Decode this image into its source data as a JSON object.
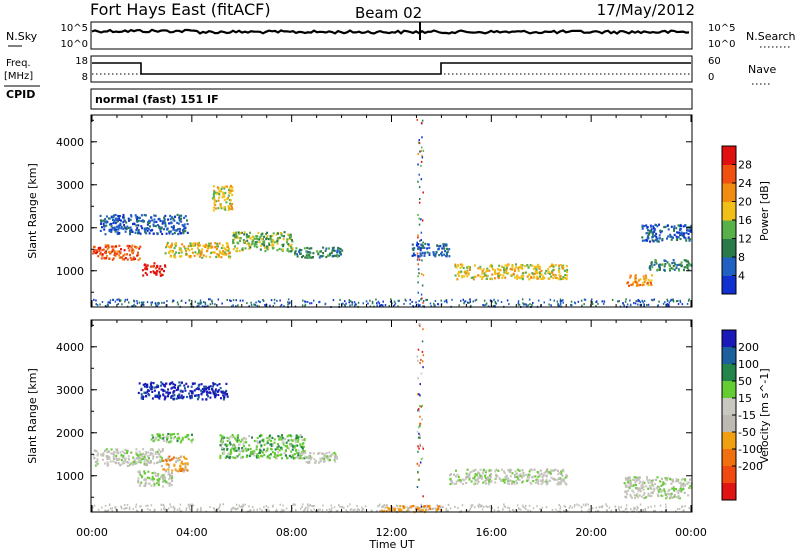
{
  "header": {
    "station": "Fort Hays East (fitACF)",
    "beam": "Beam 02",
    "date": "17/May/2012"
  },
  "top_panels": {
    "nsky_label": "N.Sky",
    "nsky_ticks": [
      "10^5",
      "10^0"
    ],
    "nsearch_label": "N.Search",
    "nsearch_ticks": [
      "10^5",
      "10^0"
    ],
    "freq_label_1": "Freq.",
    "freq_label_2": "[MHz]",
    "freq_ticks": [
      "18",
      "8"
    ],
    "nave_label": "Nave",
    "nave_ticks": [
      "60",
      "0"
    ],
    "cpid_label": "CPID",
    "cpid_text": "normal (fast) 151 IF"
  },
  "colors": {
    "power": [
      "#1030d0",
      "#2060c0",
      "#2a7a4a",
      "#58b048",
      "#f0c018",
      "#f08c10",
      "#f05010",
      "#e01010"
    ],
    "velocity": [
      "#1a1ab8",
      "#1b5f9c",
      "#24854a",
      "#66cc33",
      "#c8c8c0",
      "#bdb9b3",
      "#f0a010",
      "#f07010",
      "#f04a10",
      "#e01414"
    ],
    "nsky_line": "#000000",
    "ground_scatter": "#c0c0b8"
  },
  "chart_data": [
    {
      "type": "heatmap",
      "panel": "power",
      "xlabel": "",
      "ylabel": "Slant Range [km]",
      "x_ticks": [
        "00:00",
        "04:00",
        "08:00",
        "12:00",
        "16:00",
        "20:00",
        "00:00"
      ],
      "y_ticks": [
        "1000",
        "2000",
        "3000",
        "4000"
      ],
      "xlim": [
        0,
        24
      ],
      "ylim": [
        180,
        4600
      ],
      "colorbar_label": "Power [dB]",
      "colorbar_ticks": [
        "28",
        "24",
        "20",
        "16",
        "12",
        "8",
        "4"
      ],
      "colorbar_range": [
        0,
        32
      ],
      "regions": [
        {
          "t": 0.0,
          "r": 1450,
          "dt": 1.9,
          "dr": 350,
          "level": 6
        },
        {
          "t": 2.0,
          "r": 1050,
          "dt": 0.9,
          "dr": 300,
          "level": 7
        },
        {
          "t": 2.9,
          "r": 1500,
          "dt": 2.6,
          "dr": 350,
          "level": 4
        },
        {
          "t": 5.6,
          "r": 1700,
          "dt": 2.4,
          "dr": 450,
          "level": 3
        },
        {
          "t": 8.0,
          "r": 1450,
          "dt": 2.0,
          "dr": 250,
          "level": 2
        },
        {
          "t": 4.8,
          "r": 2700,
          "dt": 0.8,
          "dr": 600,
          "level": 4
        },
        {
          "t": 0.3,
          "r": 2100,
          "dt": 3.5,
          "dr": 450,
          "level": 1
        },
        {
          "t": 14.5,
          "r": 1000,
          "dt": 4.5,
          "dr": 350,
          "level": 4
        },
        {
          "t": 12.8,
          "r": 1500,
          "dt": 1.5,
          "dr": 300,
          "level": 1
        },
        {
          "t": 21.4,
          "r": 800,
          "dt": 1.0,
          "dr": 250,
          "level": 5
        },
        {
          "t": 22.3,
          "r": 1150,
          "dt": 1.7,
          "dr": 250,
          "level": 2
        },
        {
          "t": 22.0,
          "r": 1900,
          "dt": 2.0,
          "dr": 400,
          "level": 1
        }
      ]
    },
    {
      "type": "heatmap",
      "panel": "velocity",
      "xlabel": "Time UT",
      "ylabel": "Slant Range [km]",
      "x_ticks": [
        "00:00",
        "04:00",
        "08:00",
        "12:00",
        "16:00",
        "20:00",
        "00:00"
      ],
      "y_ticks": [
        "1000",
        "2000",
        "3000",
        "4000"
      ],
      "xlim": [
        0,
        24
      ],
      "ylim": [
        180,
        4600
      ],
      "colorbar_label": "Velocity [m s^-1]",
      "colorbar_ticks": [
        "200",
        "100",
        "50",
        "15",
        "-15",
        "-50",
        "-100",
        "-200"
      ],
      "regions": [
        {
          "t": 0.0,
          "r": 1450,
          "dt": 2.8,
          "dr": 400,
          "level": 4
        },
        {
          "t": 1.8,
          "r": 950,
          "dt": 1.4,
          "dr": 350,
          "level": 4
        },
        {
          "t": 2.2,
          "r": 1900,
          "dt": 1.8,
          "dr": 200,
          "level": 3
        },
        {
          "t": 2.8,
          "r": 1300,
          "dt": 1.0,
          "dr": 350,
          "level": 6
        },
        {
          "t": 5.1,
          "r": 1700,
          "dt": 3.4,
          "dr": 550,
          "level": 3
        },
        {
          "t": 8.4,
          "r": 1450,
          "dt": 1.4,
          "dr": 250,
          "level": 4
        },
        {
          "t": 1.8,
          "r": 3000,
          "dt": 3.6,
          "dr": 400,
          "level": 0
        },
        {
          "t": 14.3,
          "r": 1000,
          "dt": 4.7,
          "dr": 350,
          "level": 4
        },
        {
          "t": 21.3,
          "r": 750,
          "dt": 2.7,
          "dr": 500,
          "level": 4
        },
        {
          "t": 11.5,
          "r": 250,
          "dt": 2.5,
          "dr": 150,
          "level": 6
        }
      ]
    }
  ]
}
